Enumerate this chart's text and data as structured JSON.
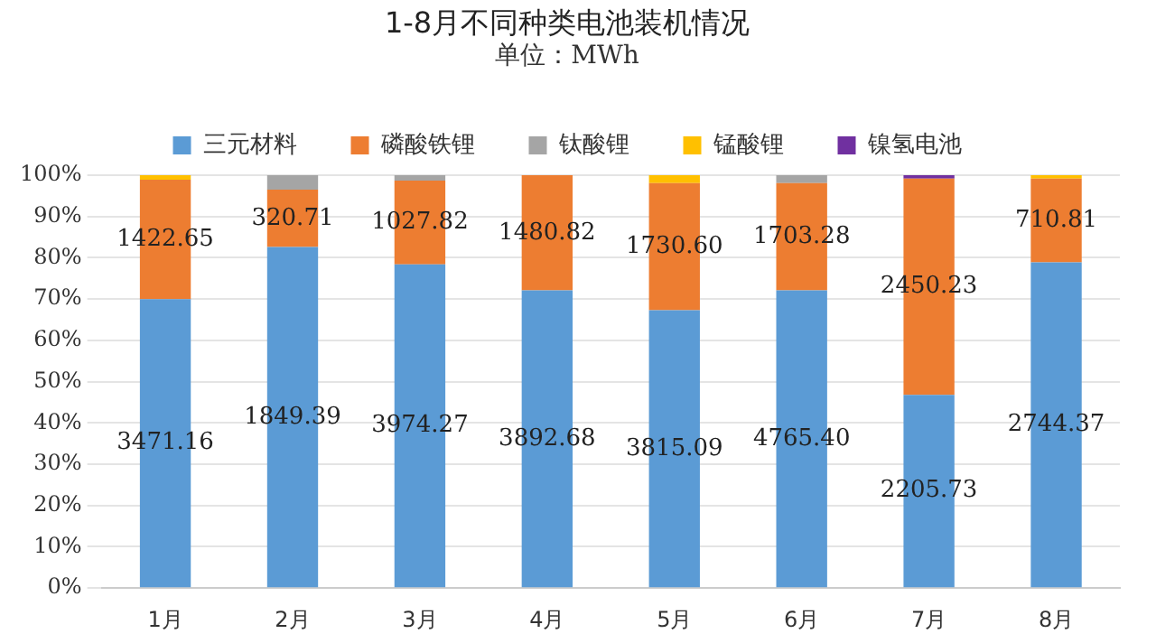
{
  "chart_data": {
    "type": "bar",
    "stacked": true,
    "title": "1-8月不同种类电池装机情况",
    "subtitle": "单位：MWh",
    "categories": [
      "1月",
      "2月",
      "3月",
      "4月",
      "5月",
      "6月",
      "7月",
      "8月"
    ],
    "series": [
      {
        "name": "三元材料",
        "color": "#5b9bd5",
        "values": [
          70.0,
          82.6,
          78.4,
          72.1,
          67.3,
          72.1,
          46.8,
          78.9
        ]
      },
      {
        "name": "磷酸铁锂",
        "color": "#ed7d31",
        "values": [
          28.9,
          13.9,
          20.3,
          27.9,
          30.8,
          26.0,
          52.4,
          20.3
        ]
      },
      {
        "name": "钛酸锂",
        "color": "#a5a5a5",
        "values": [
          0,
          3.5,
          1.3,
          0,
          0,
          1.9,
          0,
          0
        ]
      },
      {
        "name": "锰酸锂",
        "color": "#ffc000",
        "values": [
          1.1,
          0,
          0,
          0,
          1.9,
          0,
          0,
          0.8
        ]
      },
      {
        "name": "镍氢电池",
        "color": "#7030a0",
        "values": [
          0,
          0,
          0,
          0,
          0,
          0,
          0.8,
          0
        ]
      }
    ],
    "annotations": [
      "3471.16",
      "1849.39",
      "3974.27",
      "3892.68",
      "3815.09",
      "4765.40",
      "2205.73",
      "2744.37",
      "1422.65",
      "320.71",
      "1027.82",
      "1480.82",
      "1730.60",
      "1703.28",
      "2450.23",
      "710.81"
    ],
    "ylim": [
      0,
      100
    ],
    "yticks": [
      {
        "value": 0,
        "label": "0%"
      },
      {
        "value": 10,
        "label": "10%"
      },
      {
        "value": 20,
        "label": "20%"
      },
      {
        "value": 30,
        "label": "30%"
      },
      {
        "value": 40,
        "label": "40%"
      },
      {
        "value": 50,
        "label": "50%"
      },
      {
        "value": 60,
        "label": "60%"
      },
      {
        "value": 70,
        "label": "70%"
      },
      {
        "value": 80,
        "label": "80%"
      },
      {
        "value": 90,
        "label": "90%"
      },
      {
        "value": 100,
        "label": "100%"
      }
    ],
    "grid": "y",
    "legend": "top"
  }
}
